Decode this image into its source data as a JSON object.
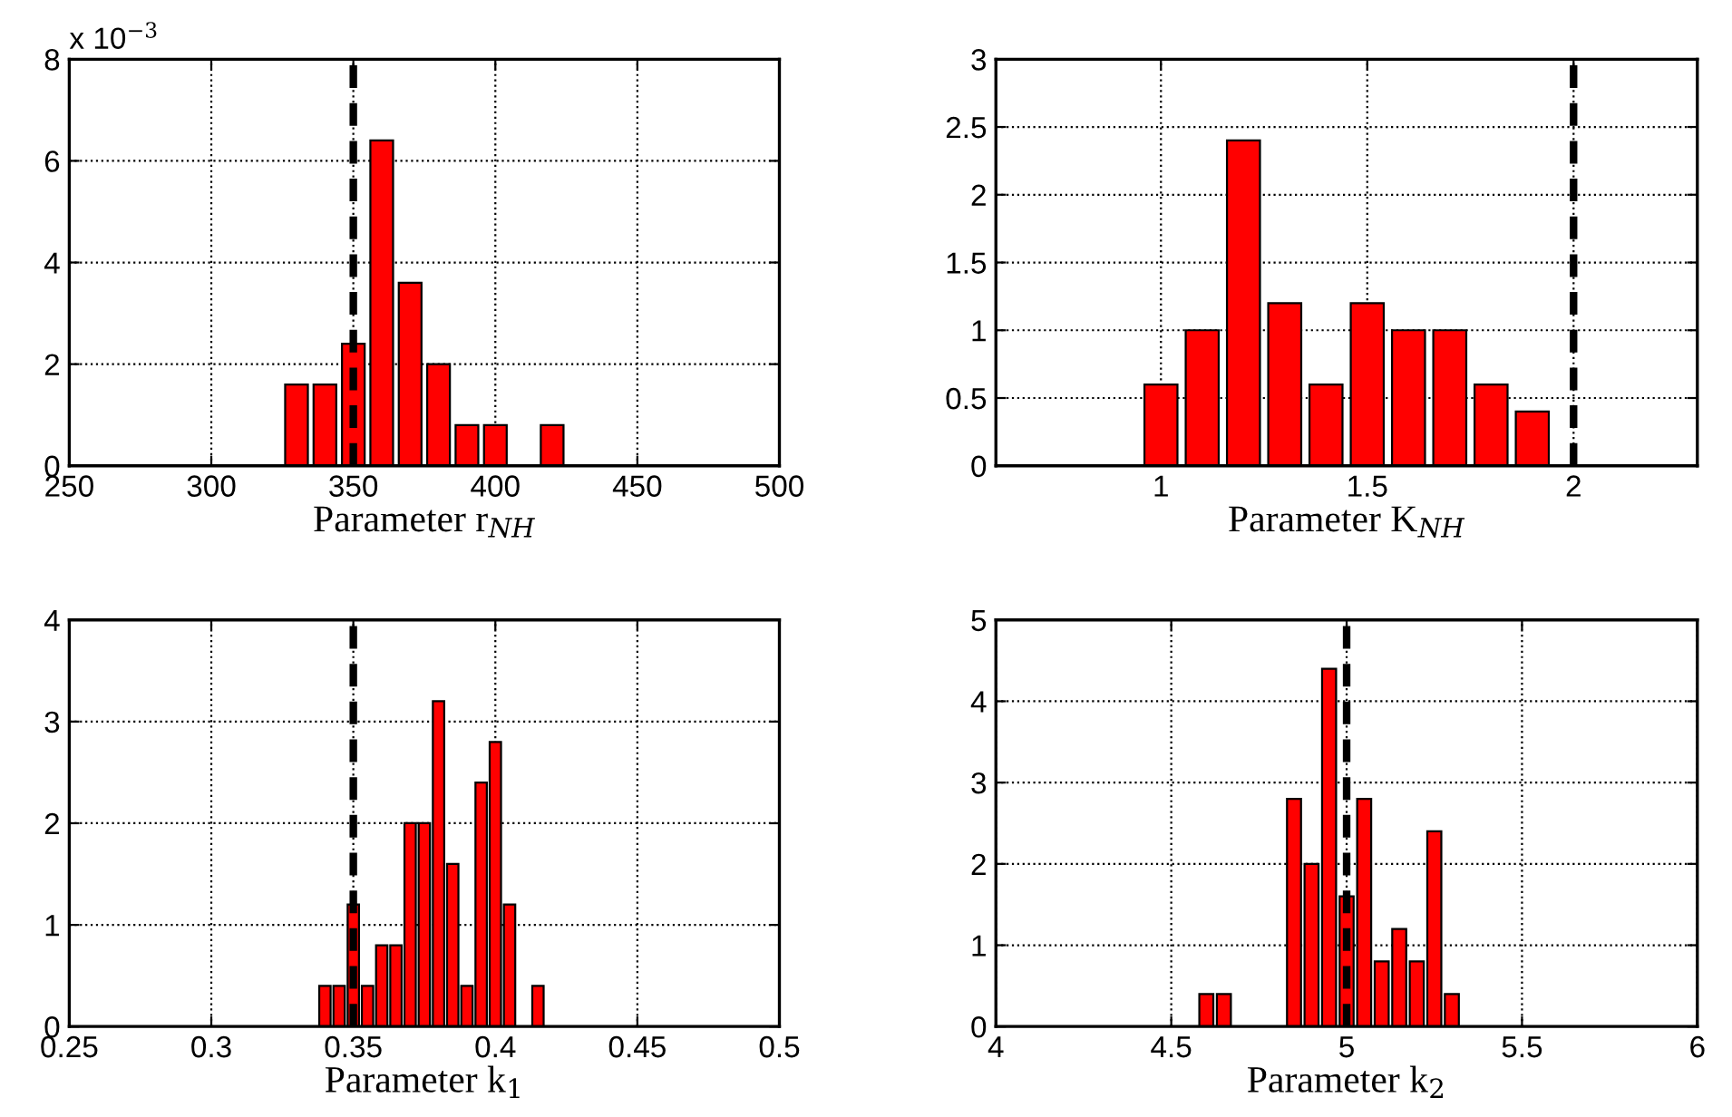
{
  "chart_data": [
    {
      "type": "histogram",
      "xlabel": "Parameter r$_{NH}$",
      "bins": [
        325,
        335,
        345,
        355,
        365,
        375,
        385,
        395,
        405,
        415,
        425
      ],
      "values": [
        1.6,
        1.6,
        2.4,
        6.4,
        3.6,
        2.0,
        0.8,
        0.8,
        0,
        0.8
      ],
      "color": "#ff0000",
      "xlim": [
        250,
        500
      ],
      "xticks": [
        250,
        300,
        350,
        400,
        450,
        500
      ],
      "ylim": [
        0,
        8
      ],
      "yticks": [
        0,
        2,
        4,
        6,
        8
      ],
      "annotations": [
        "x 10$^{−3}$"
      ],
      "ref_lines": [
        {
          "axis": "x",
          "value": 350,
          "color": "#000000",
          "line_style": "dashed"
        }
      ],
      "grid": true
    },
    {
      "type": "histogram",
      "xlabel": "Parameter K$_{NH}$",
      "bins": [
        0.95,
        1.05,
        1.15,
        1.25,
        1.35,
        1.45,
        1.55,
        1.65,
        1.75,
        1.85,
        1.95
      ],
      "values": [
        0.6,
        1.0,
        2.4,
        1.2,
        0.6,
        1.2,
        1.0,
        1.0,
        0.6,
        0.4
      ],
      "color": "#ff0000",
      "xlim": [
        0.6,
        2.3
      ],
      "xticks": [
        1,
        1.5,
        2
      ],
      "ylim": [
        0,
        3
      ],
      "yticks": [
        0,
        0.5,
        1,
        1.5,
        2,
        2.5,
        3
      ],
      "ref_lines": [
        {
          "axis": "x",
          "value": 2,
          "color": "#000000",
          "line_style": "dashed"
        }
      ],
      "grid": true
    },
    {
      "type": "histogram",
      "xlabel": "Parameter k$_{1}$",
      "bins": [
        0.3375,
        0.3425,
        0.3475,
        0.3525,
        0.3575,
        0.3625,
        0.3675,
        0.3725,
        0.3775,
        0.3825,
        0.3875,
        0.3925,
        0.3975,
        0.4025,
        0.4075,
        0.4125,
        0.4175
      ],
      "values": [
        0.4,
        0.4,
        1.2,
        0.4,
        0.8,
        0.8,
        2.0,
        2.0,
        3.2,
        1.6,
        0.4,
        2.4,
        2.8,
        1.2,
        0,
        0.4
      ],
      "color": "#ff0000",
      "xlim": [
        0.25,
        0.5
      ],
      "xticks": [
        0.25,
        0.3,
        0.35,
        0.4,
        0.45,
        0.5
      ],
      "ylim": [
        0,
        4
      ],
      "yticks": [
        0,
        1,
        2,
        3,
        4
      ],
      "ref_lines": [
        {
          "axis": "x",
          "value": 0.35,
          "color": "#000000",
          "line_style": "dashed"
        }
      ],
      "grid": true
    },
    {
      "type": "histogram",
      "xlabel": "Parameter k$_{2}$",
      "bins": [
        4.575,
        4.625,
        4.675,
        4.725,
        4.775,
        4.825,
        4.875,
        4.925,
        4.975,
        5.025,
        5.075,
        5.125,
        5.175,
        5.225,
        5.275,
        5.325
      ],
      "values": [
        0.4,
        0.4,
        0,
        0,
        0,
        2.8,
        2.0,
        4.4,
        1.6,
        2.8,
        0.8,
        1.2,
        0.8,
        2.4,
        0.4
      ],
      "color": "#ff0000",
      "xlim": [
        4,
        6
      ],
      "xticks": [
        4,
        4.5,
        5,
        5.5,
        6
      ],
      "ylim": [
        0,
        5
      ],
      "yticks": [
        0,
        1,
        2,
        3,
        4,
        5
      ],
      "ref_lines": [
        {
          "axis": "x",
          "value": 5,
          "color": "#000000",
          "line_style": "dashed"
        }
      ],
      "grid": true
    }
  ]
}
